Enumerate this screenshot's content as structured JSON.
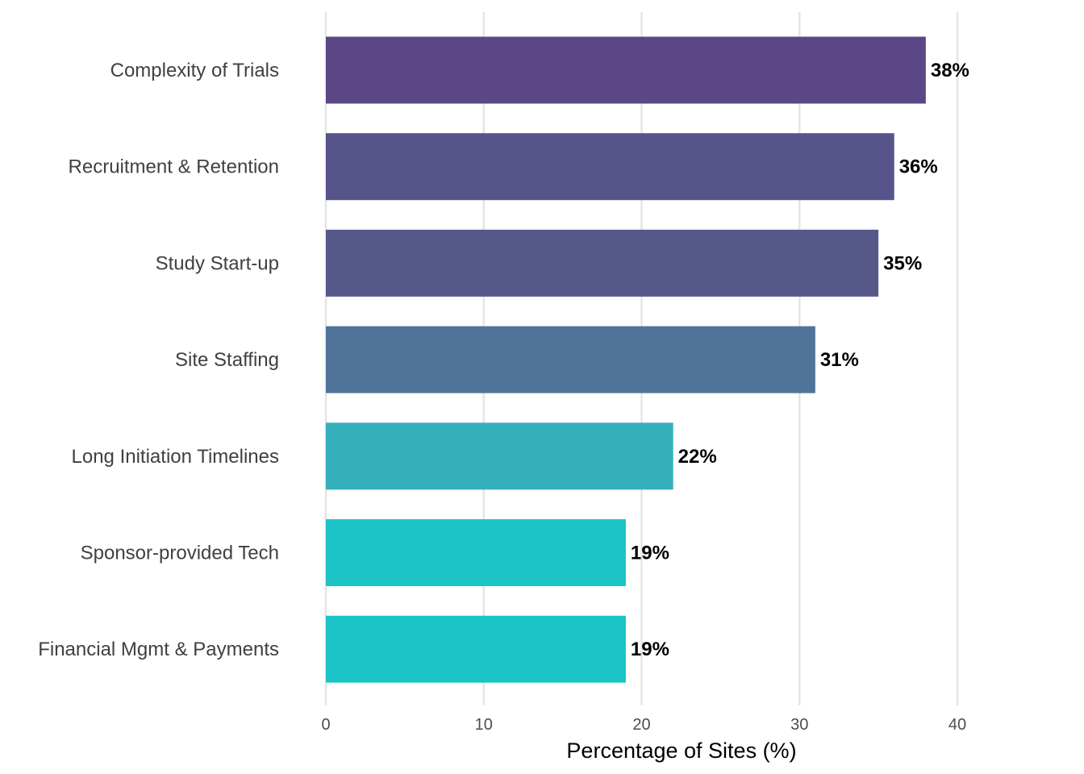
{
  "chart_data": {
    "type": "bar",
    "orientation": "horizontal",
    "title": "",
    "xlabel": "Percentage of Sites (%)",
    "ylabel": "",
    "xlim": [
      0,
      40
    ],
    "xticks": [
      0,
      10,
      20,
      30,
      40
    ],
    "grid": "vertical major",
    "categories": [
      "Complexity of Trials",
      "Recruitment & Retention",
      "Study Start-up",
      "Site Staffing",
      "Long Initiation Timelines",
      "Sponsor-provided Tech",
      "Financial Mgmt & Payments"
    ],
    "values": [
      38,
      36,
      35,
      31,
      22,
      19,
      19
    ],
    "data_labels": [
      "38%",
      "36%",
      "35%",
      "31%",
      "22%",
      "19%",
      "19%"
    ],
    "colors": [
      "#5B4785",
      "#57548A",
      "#57588A",
      "#517399",
      "#35AFBA",
      "#1BC3C6",
      "#1BC4C7"
    ]
  }
}
